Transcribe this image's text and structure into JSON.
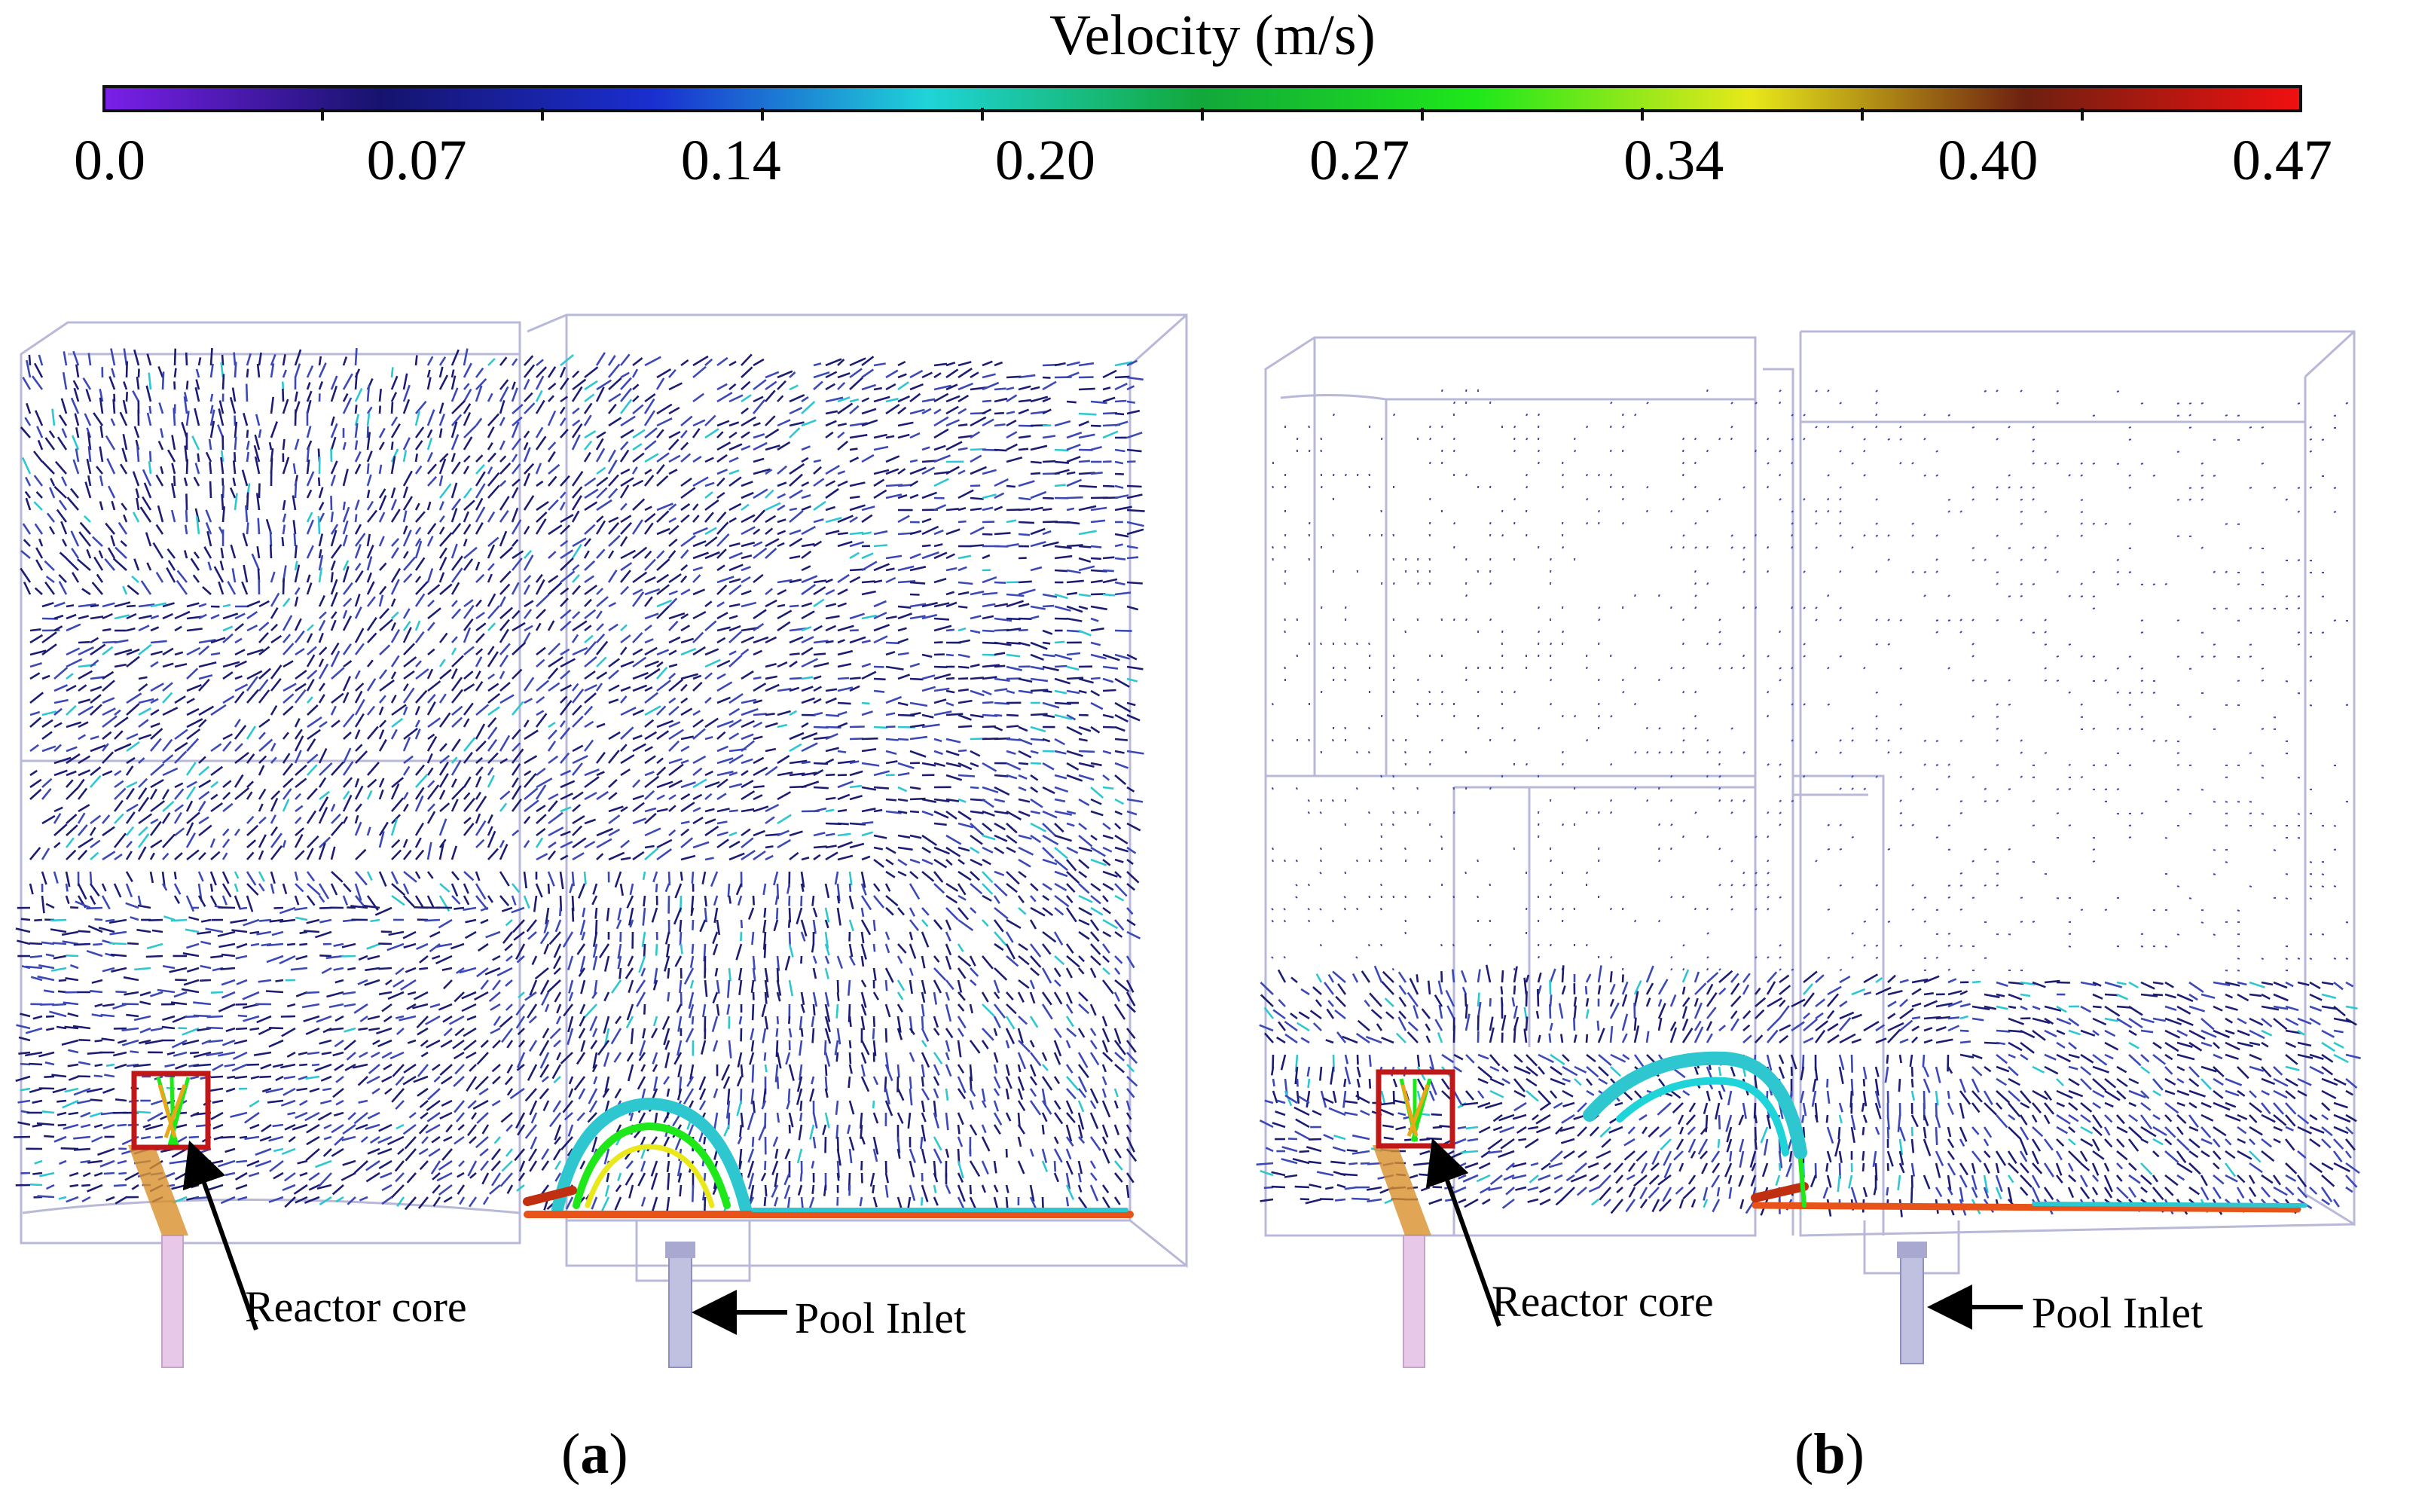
{
  "colorbar": {
    "title": "Velocity (m/s)",
    "ticks": [
      "0.0",
      "0.07",
      "0.14",
      "0.20",
      "0.27",
      "0.34",
      "0.40",
      "0.47"
    ],
    "colors": [
      "#7a1fe8",
      "#16136e",
      "#1a2fd0",
      "#1fd4d8",
      "#12a83a",
      "#1ee81a",
      "#e8e81a",
      "#6e2010",
      "#f01010"
    ]
  },
  "panels": [
    {
      "id": "a",
      "label_open": "(",
      "label_letter": "a",
      "label_close": ")",
      "annotations": {
        "core": "Reactor core",
        "inlet": "Pool Inlet"
      }
    },
    {
      "id": "b",
      "label_open": "(",
      "label_letter": "b",
      "label_close": ")",
      "annotations": {
        "core": "Reactor core",
        "inlet": "Pool Inlet"
      }
    }
  ],
  "colors": {
    "dark_vector": "#1c1c72",
    "mid_vector": "#3b48b6",
    "cyan_vector": "#2ec7d0",
    "outline": "#b8b8d8",
    "core_box": "#c01818",
    "core_pipe": "#d8b8d8",
    "inlet_pipe": "#a8a8d0"
  }
}
